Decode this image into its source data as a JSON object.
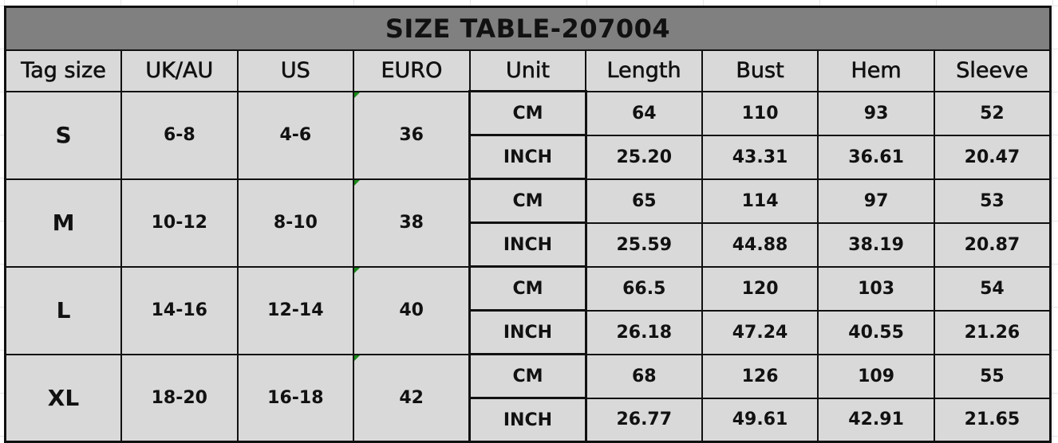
{
  "title": "SIZE TABLE-207004",
  "headers": [
    "Tag size",
    "UK/AU",
    "US",
    "EURO",
    "Unit",
    "Length",
    "Bust",
    "Hem",
    "Sleeve"
  ],
  "sizes": [
    {
      "tag": "S",
      "uk": "6-8",
      "us": "4-6",
      "euro": "36",
      "cm": {
        "unit": "CM",
        "length": "64",
        "bust": "110",
        "hem": "93",
        "sleeve": "52"
      },
      "inch": {
        "unit": "INCH",
        "length": "25.20",
        "bust": "43.31",
        "hem": "36.61",
        "sleeve": "20.47"
      }
    },
    {
      "tag": "M",
      "uk": "10-12",
      "us": "8-10",
      "euro": "38",
      "cm": {
        "unit": "CM",
        "length": "65",
        "bust": "114",
        "hem": "97",
        "sleeve": "53"
      },
      "inch": {
        "unit": "INCH",
        "length": "25.59",
        "bust": "44.88",
        "hem": "38.19",
        "sleeve": "20.87"
      }
    },
    {
      "tag": "L",
      "uk": "14-16",
      "us": "12-14",
      "euro": "40",
      "cm": {
        "unit": "CM",
        "length": "66.5",
        "bust": "120",
        "hem": "103",
        "sleeve": "54"
      },
      "inch": {
        "unit": "INCH",
        "length": "26.18",
        "bust": "47.24",
        "hem": "40.55",
        "sleeve": "21.26"
      }
    },
    {
      "tag": "XL",
      "uk": "18-20",
      "us": "16-18",
      "euro": "42",
      "cm": {
        "unit": "CM",
        "length": "68",
        "bust": "126",
        "hem": "109",
        "sleeve": "55"
      },
      "inch": {
        "unit": "INCH",
        "length": "26.77",
        "bust": "49.61",
        "hem": "42.91",
        "sleeve": "21.65"
      }
    }
  ],
  "colors": {
    "title_bg": "#808080",
    "cell_bg": "#d9d9d9",
    "comment_marker": "#1a8a1a"
  }
}
